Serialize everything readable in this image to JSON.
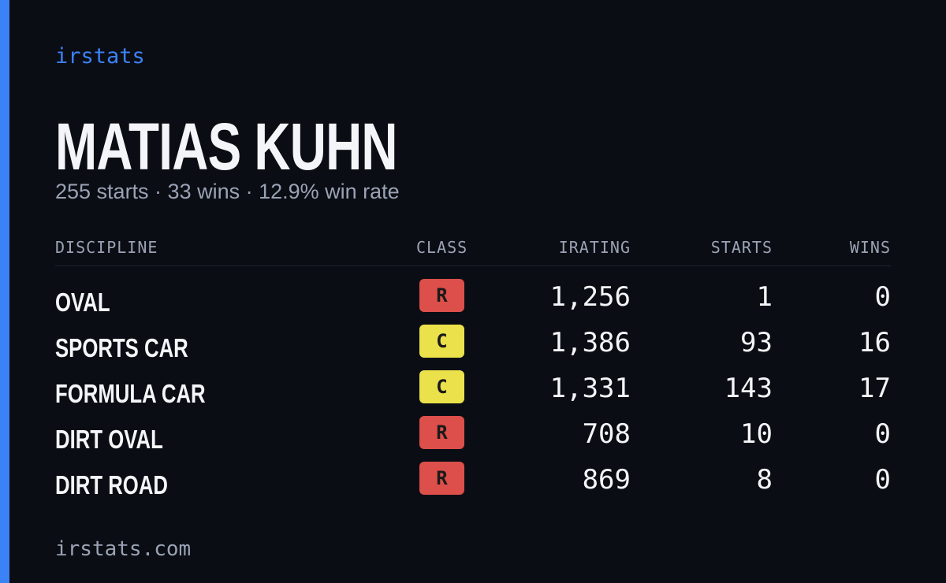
{
  "header": {
    "brand": "irstats",
    "name": "MATIAS KUHN",
    "summary": "255 starts · 33 wins · 12.9% win rate"
  },
  "table": {
    "columns": [
      "DISCIPLINE",
      "CLASS",
      "IRATING",
      "STARTS",
      "WINS"
    ],
    "rows": [
      {
        "discipline": "OVAL",
        "class": "R",
        "class_color": "#dd4f4a",
        "irating": "1,256",
        "starts": "1",
        "wins": "0"
      },
      {
        "discipline": "SPORTS CAR",
        "class": "C",
        "class_color": "#ebe14a",
        "irating": "1,386",
        "starts": "93",
        "wins": "16"
      },
      {
        "discipline": "FORMULA CAR",
        "class": "C",
        "class_color": "#ebe14a",
        "irating": "1,331",
        "starts": "143",
        "wins": "17"
      },
      {
        "discipline": "DIRT OVAL",
        "class": "R",
        "class_color": "#dd4f4a",
        "irating": "708",
        "starts": "10",
        "wins": "0"
      },
      {
        "discipline": "DIRT ROAD",
        "class": "R",
        "class_color": "#dd4f4a",
        "irating": "869",
        "starts": "8",
        "wins": "0"
      }
    ]
  },
  "footer": {
    "url": "irstats.com"
  }
}
